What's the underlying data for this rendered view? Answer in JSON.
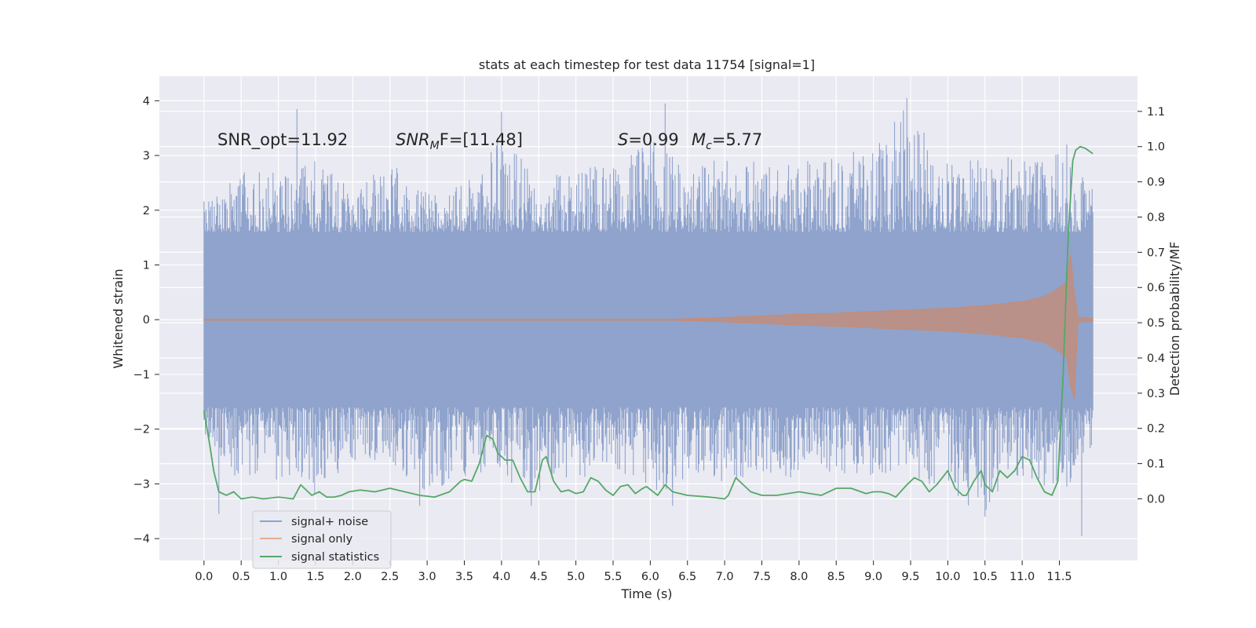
{
  "chart_data": {
    "type": "line",
    "title": "stats at each timestep for test data 11754 [signal=1]",
    "xlabel": "Time (s)",
    "ylabel": "Whitened strain",
    "y2label": "Detection probability/MF",
    "xlim": [
      -0.6,
      12.55
    ],
    "ylim": [
      -4.4,
      4.45
    ],
    "y2lim": [
      -0.175,
      1.2
    ],
    "x_ticks": [
      0.0,
      0.5,
      1.0,
      1.5,
      2.0,
      2.5,
      3.0,
      3.5,
      4.0,
      4.5,
      5.0,
      5.5,
      6.0,
      6.5,
      7.0,
      7.5,
      8.0,
      8.5,
      9.0,
      9.5,
      10.0,
      10.5,
      11.0,
      11.5
    ],
    "x_tick_labels": [
      "0.0",
      "0.5",
      "1.0",
      "1.5",
      "2.0",
      "2.5",
      "3.0",
      "3.5",
      "4.0",
      "4.5",
      "5.0",
      "5.5",
      "6.0",
      "6.5",
      "7.0",
      "7.5",
      "8.0",
      "8.5",
      "9.0",
      "9.5",
      "10.0",
      "10.5",
      "11.0",
      "11.5"
    ],
    "y_ticks": [
      -4,
      -3,
      -2,
      -1,
      0,
      1,
      2,
      3,
      4
    ],
    "y_tick_labels": [
      "−4",
      "−3",
      "−2",
      "−1",
      "0",
      "1",
      "2",
      "3",
      "4"
    ],
    "y2_ticks": [
      0.0,
      0.1,
      0.2,
      0.3,
      0.4,
      0.5,
      0.6,
      0.7,
      0.8,
      0.9,
      1.0,
      1.1
    ],
    "y2_tick_labels": [
      "0.0",
      "0.1",
      "0.2",
      "0.3",
      "0.4",
      "0.5",
      "0.6",
      "0.7",
      "0.8",
      "0.9",
      "1.0",
      "1.1"
    ],
    "grid": true,
    "legend_position": "lower-left",
    "annotations": {
      "snr_opt": "SNR_opt=11.92",
      "snr_mf_base": "SNR",
      "snr_mf_sub": "M",
      "snr_mf_rest": "F=[11.48]",
      "s_label": "S",
      "s_value": "=0.99",
      "mc_base": "M",
      "mc_sub": "c",
      "mc_value": "=5.77"
    },
    "series": [
      {
        "name": "signal+ noise",
        "axis": "left",
        "color": "#8fa3cc",
        "x_range": [
          0.0,
          11.95
        ],
        "band_low": -1.3,
        "band_high": 1.3,
        "envelope_x": [
          0.0,
          0.5,
          1.0,
          1.5,
          2.0,
          2.5,
          3.0,
          3.5,
          3.9,
          4.5,
          5.0,
          5.5,
          6.0,
          6.5,
          7.0,
          7.5,
          8.0,
          8.5,
          9.0,
          9.4,
          10.0,
          10.5,
          11.0,
          11.5,
          11.95
        ],
        "envelope_max": [
          2.2,
          2.7,
          2.8,
          2.9,
          2.4,
          2.9,
          2.4,
          2.5,
          3.4,
          2.7,
          2.8,
          2.8,
          3.3,
          2.8,
          3.0,
          2.9,
          2.9,
          3.1,
          3.1,
          4.0,
          2.9,
          3.0,
          3.0,
          3.1,
          2.4
        ],
        "envelope_min": [
          -2.1,
          -3.1,
          -3.0,
          -3.2,
          -2.6,
          -2.6,
          -3.2,
          -2.9,
          -2.8,
          -3.3,
          -2.9,
          -2.8,
          -3.2,
          -3.0,
          -3.0,
          -2.9,
          -2.9,
          -2.8,
          -2.9,
          -2.7,
          -3.3,
          -3.5,
          -2.9,
          -3.3,
          -2.3
        ],
        "peaks": [
          [
            1.25,
            3.85
          ],
          [
            4.0,
            3.8
          ],
          [
            6.2,
            3.95
          ],
          [
            9.45,
            4.05
          ],
          [
            11.6,
            3.2
          ],
          [
            0.2,
            -3.55
          ],
          [
            2.9,
            -3.4
          ],
          [
            4.4,
            -3.4
          ],
          [
            6.3,
            -3.4
          ],
          [
            10.5,
            -3.6
          ],
          [
            11.8,
            -3.95
          ],
          [
            11.6,
            -3.05
          ]
        ]
      },
      {
        "name": "signal only",
        "axis": "left",
        "color": "#dd8452",
        "x": [
          0.0,
          6.3,
          6.8,
          7.5,
          8.0,
          8.5,
          9.0,
          9.5,
          10.0,
          10.5,
          11.0,
          11.3,
          11.5,
          11.6,
          11.65,
          11.7,
          11.75,
          11.95
        ],
        "amplitude": [
          0.01,
          0.01,
          0.03,
          0.07,
          0.1,
          0.12,
          0.15,
          0.18,
          0.21,
          0.26,
          0.33,
          0.42,
          0.58,
          0.7,
          1.2,
          0.5,
          0.05,
          0.02
        ],
        "low_peak": [
          11.7,
          -1.45
        ]
      },
      {
        "name": "signal statistics",
        "axis": "right",
        "color": "#55a868",
        "x": [
          0.0,
          0.08,
          0.13,
          0.2,
          0.3,
          0.4,
          0.5,
          0.65,
          0.8,
          1.0,
          1.2,
          1.3,
          1.45,
          1.55,
          1.65,
          1.75,
          1.85,
          1.95,
          2.1,
          2.3,
          2.5,
          2.7,
          2.9,
          3.1,
          3.3,
          3.45,
          3.5,
          3.6,
          3.7,
          3.8,
          3.88,
          3.95,
          4.05,
          4.15,
          4.25,
          4.35,
          4.45,
          4.55,
          4.6,
          4.7,
          4.8,
          4.9,
          5.0,
          5.1,
          5.2,
          5.3,
          5.4,
          5.5,
          5.6,
          5.7,
          5.8,
          5.9,
          5.95,
          6.1,
          6.2,
          6.3,
          6.5,
          6.8,
          7.0,
          7.05,
          7.15,
          7.25,
          7.35,
          7.5,
          7.7,
          8.0,
          8.3,
          8.5,
          8.7,
          8.9,
          9.0,
          9.1,
          9.2,
          9.3,
          9.45,
          9.55,
          9.65,
          9.75,
          9.85,
          10.0,
          10.1,
          10.2,
          10.25,
          10.35,
          10.45,
          10.5,
          10.6,
          10.7,
          10.8,
          10.9,
          11.0,
          11.1,
          11.2,
          11.3,
          11.4,
          11.48,
          11.55,
          11.62,
          11.68,
          11.72,
          11.78,
          11.85,
          11.95
        ],
        "y": [
          0.25,
          0.15,
          0.08,
          0.02,
          0.01,
          0.02,
          0.0,
          0.005,
          0.0,
          0.005,
          0.0,
          0.04,
          0.01,
          0.02,
          0.005,
          0.005,
          0.01,
          0.02,
          0.025,
          0.02,
          0.03,
          0.02,
          0.01,
          0.005,
          0.02,
          0.05,
          0.055,
          0.05,
          0.1,
          0.18,
          0.17,
          0.13,
          0.11,
          0.11,
          0.06,
          0.02,
          0.02,
          0.11,
          0.12,
          0.05,
          0.02,
          0.025,
          0.015,
          0.02,
          0.06,
          0.05,
          0.025,
          0.01,
          0.035,
          0.04,
          0.015,
          0.03,
          0.035,
          0.01,
          0.04,
          0.02,
          0.01,
          0.005,
          0.0,
          0.01,
          0.06,
          0.04,
          0.02,
          0.01,
          0.01,
          0.02,
          0.01,
          0.03,
          0.03,
          0.015,
          0.02,
          0.02,
          0.015,
          0.005,
          0.04,
          0.06,
          0.05,
          0.02,
          0.04,
          0.08,
          0.03,
          0.01,
          0.01,
          0.05,
          0.08,
          0.04,
          0.02,
          0.08,
          0.06,
          0.08,
          0.12,
          0.11,
          0.06,
          0.02,
          0.01,
          0.05,
          0.35,
          0.75,
          0.96,
          0.99,
          1.0,
          0.995,
          0.98
        ]
      }
    ]
  }
}
